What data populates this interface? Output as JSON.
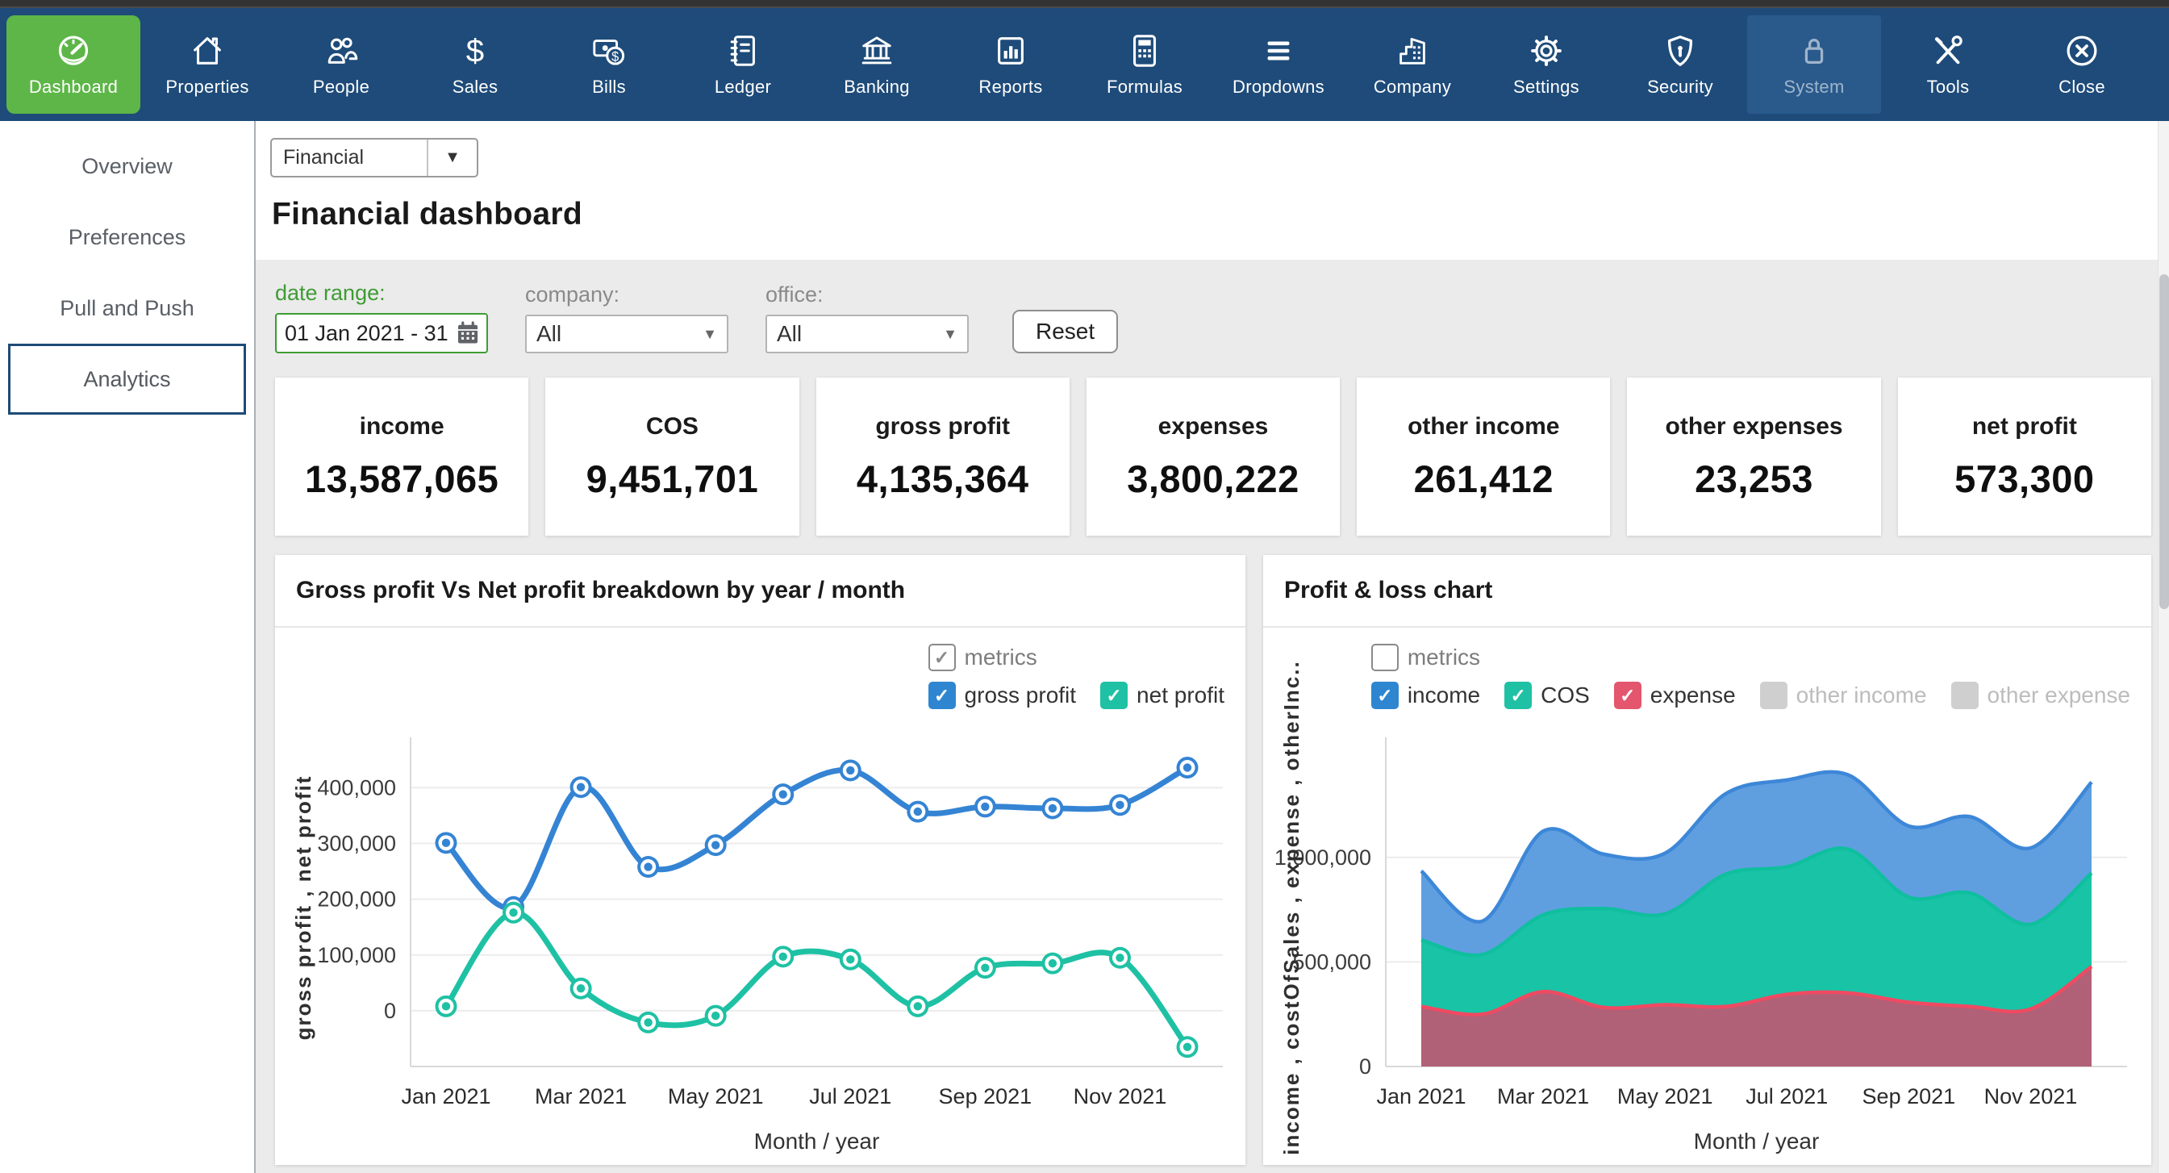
{
  "navbar": {
    "items": [
      {
        "label": "Dashboard",
        "icon": "dashboard-gauge",
        "active": true
      },
      {
        "label": "Properties",
        "icon": "house"
      },
      {
        "label": "People",
        "icon": "people"
      },
      {
        "label": "Sales",
        "icon": "dollar"
      },
      {
        "label": "Bills",
        "icon": "banknote"
      },
      {
        "label": "Ledger",
        "icon": "notebook"
      },
      {
        "label": "Banking",
        "icon": "bank"
      },
      {
        "label": "Reports",
        "icon": "bar-chart"
      },
      {
        "label": "Formulas",
        "icon": "calculator"
      },
      {
        "label": "Dropdowns",
        "icon": "menu-lines"
      },
      {
        "label": "Company",
        "icon": "building"
      },
      {
        "label": "Settings",
        "icon": "gear"
      },
      {
        "label": "Security",
        "icon": "shield"
      },
      {
        "label": "System",
        "icon": "lock",
        "disabled": true
      },
      {
        "label": "Tools",
        "icon": "crossed-tools"
      },
      {
        "label": "Close",
        "icon": "close-circle"
      }
    ],
    "colors": {
      "bar": "#1e4b79",
      "active": "#5db647"
    }
  },
  "sidebar": {
    "items": [
      {
        "label": "Overview"
      },
      {
        "label": "Preferences"
      },
      {
        "label": "Pull and Push"
      },
      {
        "label": "Analytics",
        "selected": true
      }
    ]
  },
  "page": {
    "report_selector_value": "Financial",
    "title": "Financial dashboard"
  },
  "filters": {
    "date_label": "date range:",
    "date_value": "01 Jan 2021 - 31",
    "company_label": "company:",
    "company_value": "All",
    "office_label": "office:",
    "office_value": "All",
    "reset_label": "Reset",
    "accent_green": "#3f9c35"
  },
  "kpis": [
    {
      "label": "income",
      "value": "13,587,065"
    },
    {
      "label": "COS",
      "value": "9,451,701"
    },
    {
      "label": "gross profit",
      "value": "4,135,364"
    },
    {
      "label": "expenses",
      "value": "3,800,222"
    },
    {
      "label": "other income",
      "value": "261,412"
    },
    {
      "label": "other expenses",
      "value": "23,253"
    },
    {
      "label": "net profit",
      "value": "573,300"
    }
  ],
  "chart_data": [
    {
      "type": "line",
      "title": "Gross profit Vs Net profit breakdown by year / month",
      "x": [
        "Jan 2021",
        "Feb 2021",
        "Mar 2021",
        "Apr 2021",
        "May 2021",
        "Jun 2021",
        "Jul 2021",
        "Aug 2021",
        "Sep 2021",
        "Oct 2021",
        "Nov 2021",
        "Dec 2021"
      ],
      "xlabel": "Month / year",
      "ylabel": "gross profit , net profit",
      "yticks": [
        0,
        100000,
        200000,
        300000,
        400000
      ],
      "ylim": [
        -100000,
        470000
      ],
      "grid": true,
      "legend": {
        "position": "top-right",
        "group_label": "metrics",
        "group_checked": true,
        "items": [
          {
            "label": "gross profit",
            "checked": true,
            "color": "#2e86d1"
          },
          {
            "label": "net profit",
            "checked": true,
            "color": "#1fc1a4"
          }
        ]
      },
      "series": [
        {
          "name": "gross profit",
          "color": "#3584d4",
          "values": [
            301000,
            186000,
            401000,
            258000,
            297000,
            388000,
            431000,
            357000,
            366000,
            363000,
            369000,
            436000
          ]
        },
        {
          "name": "net profit",
          "color": "#1fc1a4",
          "values": [
            8000,
            176000,
            40000,
            -21000,
            -9000,
            97000,
            92000,
            8000,
            77000,
            85000,
            95000,
            -65000
          ]
        }
      ]
    },
    {
      "type": "area",
      "title": "Profit & loss chart",
      "x": [
        "Jan 2021",
        "Feb 2021",
        "Mar 2021",
        "Apr 2021",
        "May 2021",
        "Jun 2021",
        "Jul 2021",
        "Aug 2021",
        "Sep 2021",
        "Oct 2021",
        "Nov 2021",
        "Dec 2021"
      ],
      "xlabel": "Month / year",
      "ylabel": "income , costOfSales , expense , otherInc..",
      "yticks": [
        0,
        500000,
        1000000
      ],
      "ylim": [
        0,
        1520000
      ],
      "grid": true,
      "legend": {
        "position": "top-right",
        "group_label": "metrics",
        "group_checked": false,
        "items": [
          {
            "label": "income",
            "checked": true,
            "color": "#2e86d1"
          },
          {
            "label": "COS",
            "checked": true,
            "color": "#1fc1a4"
          },
          {
            "label": "expense",
            "checked": true,
            "color": "#e4556e"
          },
          {
            "label": "other income",
            "checked": false,
            "color": "#cfcfcf"
          },
          {
            "label": "other expense",
            "checked": false,
            "color": "#cfcfcf"
          }
        ]
      },
      "series": [
        {
          "name": "income",
          "fill": "#5f9fe0",
          "stroke": "#3d87d8",
          "values": [
            935000,
            695000,
            1125000,
            1015000,
            1020000,
            1305000,
            1370000,
            1395000,
            1150000,
            1195000,
            1045000,
            1360000
          ]
        },
        {
          "name": "COS",
          "fill": "#19c3a6",
          "stroke": "#0fbf9e",
          "values": [
            605000,
            535000,
            725000,
            755000,
            730000,
            920000,
            955000,
            1040000,
            810000,
            830000,
            680000,
            925000
          ]
        },
        {
          "name": "expense",
          "fill": "#b06177",
          "stroke": "#ef4a62",
          "values": [
            287000,
            250000,
            358000,
            282000,
            295000,
            287000,
            345000,
            352000,
            307000,
            287000,
            275000,
            478000
          ]
        }
      ]
    }
  ]
}
